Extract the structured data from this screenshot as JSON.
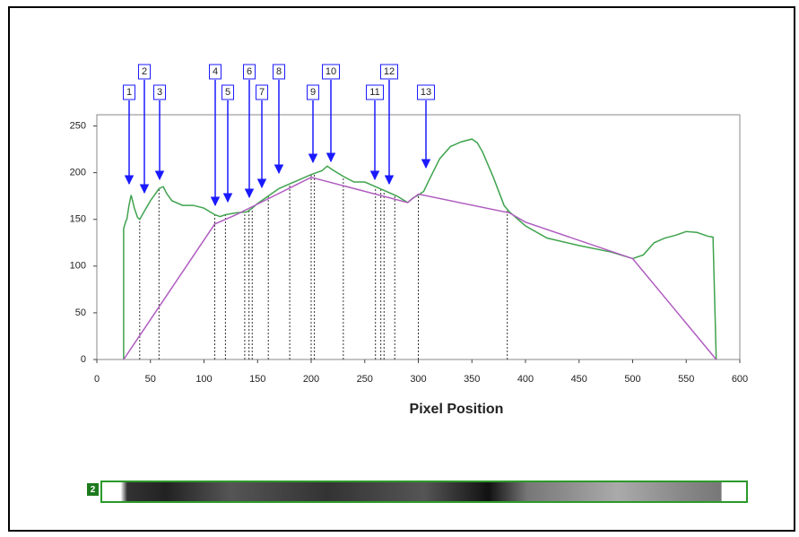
{
  "chart_data": {
    "type": "line",
    "xlabel": "Pixel Position",
    "xlim": [
      0,
      600
    ],
    "ylim": [
      0,
      262
    ],
    "xticks": [
      0,
      50,
      100,
      150,
      200,
      250,
      300,
      350,
      400,
      450,
      500,
      550,
      600
    ],
    "yticks": [
      0,
      50,
      100,
      150,
      200,
      250
    ],
    "series": [
      {
        "color": "#3fa34d",
        "x": [
          25,
          25,
          27,
          28,
          30,
          32,
          35,
          38,
          40,
          45,
          50,
          55,
          58,
          62,
          65,
          70,
          80,
          90,
          100,
          110,
          115,
          120,
          130,
          140,
          145,
          150,
          160,
          170,
          180,
          190,
          200,
          210,
          215,
          220,
          230,
          240,
          250,
          260,
          270,
          280,
          290,
          295,
          300,
          305,
          310,
          320,
          330,
          340,
          350,
          355,
          360,
          370,
          380,
          385,
          400,
          420,
          450,
          480,
          500,
          510,
          520,
          530,
          540,
          550,
          560,
          570,
          575,
          578
        ],
        "values": [
          0,
          140,
          148,
          150,
          165,
          176,
          162,
          152,
          150,
          160,
          170,
          178,
          183,
          185,
          178,
          170,
          165,
          165,
          162,
          155,
          153,
          155,
          157,
          158,
          162,
          167,
          175,
          183,
          188,
          193,
          198,
          202,
          207,
          203,
          196,
          190,
          190,
          185,
          180,
          175,
          168,
          173,
          176,
          180,
          192,
          215,
          228,
          233,
          236,
          232,
          222,
          195,
          165,
          158,
          143,
          130,
          122,
          115,
          108,
          112,
          125,
          130,
          133,
          137,
          136,
          132,
          131,
          0
        ]
      },
      {
        "color": "#b05cc0",
        "x": [
          25,
          110,
          130,
          200,
          290,
          300,
          385,
          400,
          500,
          578
        ],
        "values": [
          0,
          145,
          155,
          195,
          168,
          177,
          157,
          147,
          108,
          0
        ]
      }
    ],
    "dividers_x": [
      40,
      58,
      110,
      120,
      138,
      142,
      145,
      160,
      180,
      200,
      203,
      230,
      260,
      265,
      268,
      278,
      300,
      383
    ],
    "peak_labels": [
      "1",
      "2",
      "3",
      "4",
      "5",
      "6",
      "7",
      "8",
      "9",
      "10",
      "11",
      "12",
      "13"
    ],
    "lane_label": "2"
  }
}
